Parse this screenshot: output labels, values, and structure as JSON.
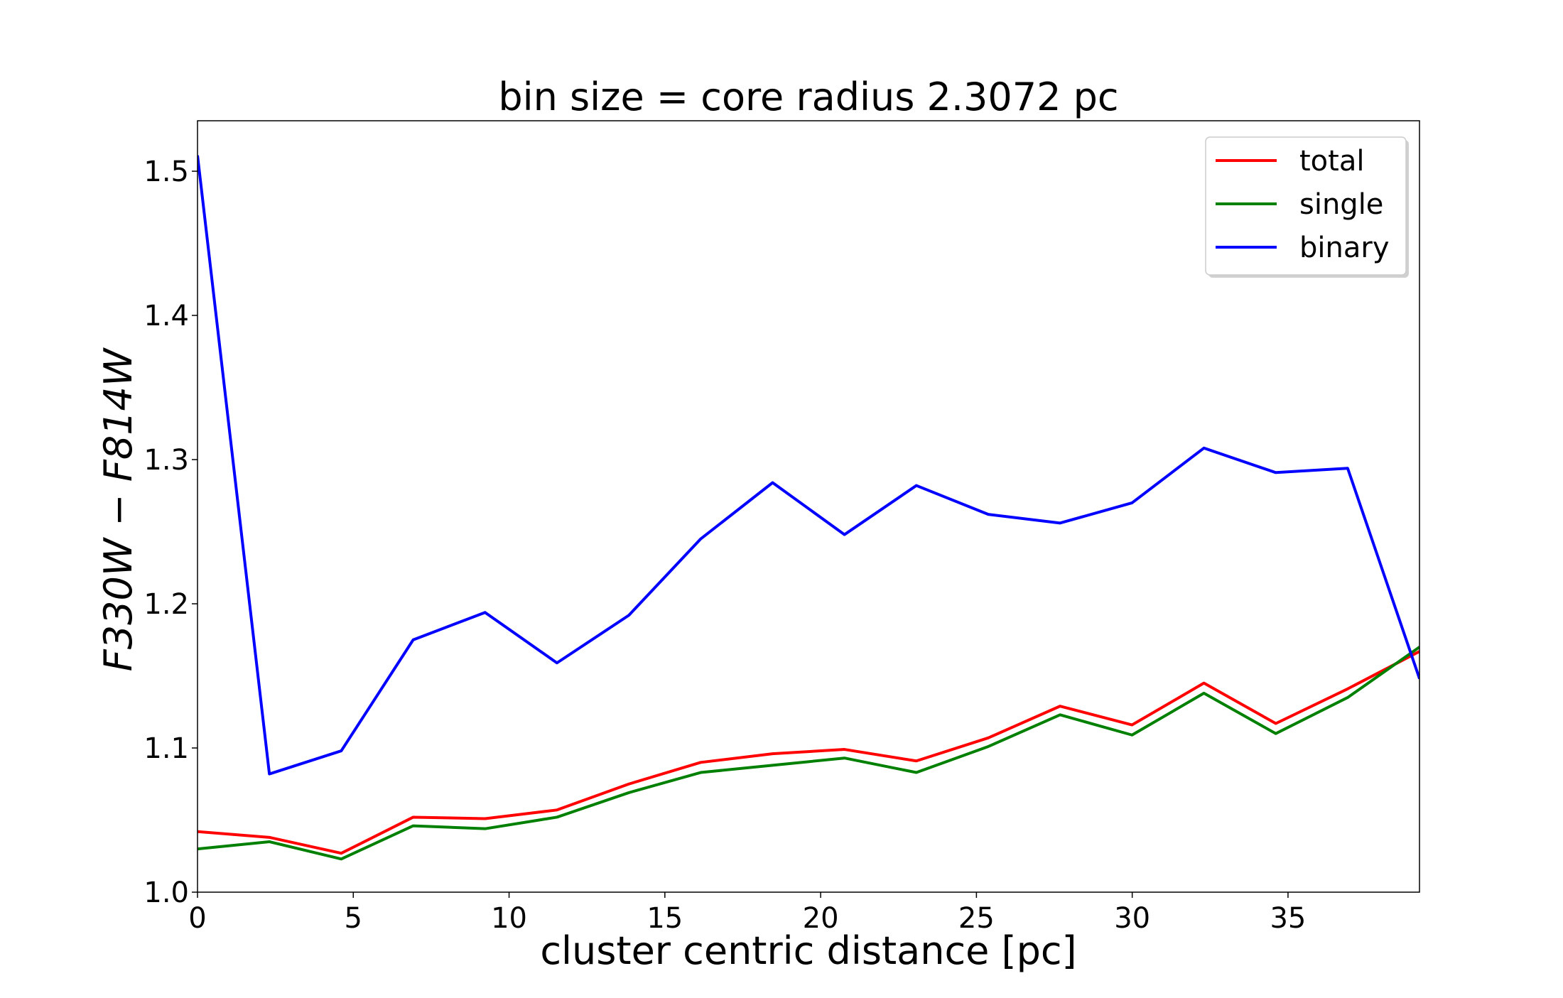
{
  "chart_data": {
    "type": "line",
    "title": "bin size = core radius 2.3072 pc",
    "xlabel": "cluster centric distance [pc]",
    "ylabel": "F330W − F814W",
    "xlim": [
      0,
      39.22
    ],
    "ylim": [
      1.0,
      1.535
    ],
    "xticks": [
      0,
      5,
      10,
      15,
      20,
      25,
      30,
      35
    ],
    "xtick_labels": [
      "0",
      "5",
      "10",
      "15",
      "20",
      "25",
      "30",
      "35"
    ],
    "yticks": [
      1.0,
      1.1,
      1.2,
      1.3,
      1.4,
      1.5
    ],
    "ytick_labels": [
      "1.0",
      "1.1",
      "1.2",
      "1.3",
      "1.4",
      "1.5"
    ],
    "grid": false,
    "legend_position": "top-right",
    "x": [
      0,
      2.307,
      4.614,
      6.922,
      9.229,
      11.536,
      13.843,
      16.15,
      18.458,
      20.765,
      23.072,
      25.379,
      27.686,
      29.994,
      32.301,
      34.608,
      36.915,
      39.222
    ],
    "series": [
      {
        "name": "total",
        "color": "#ff0000",
        "values": [
          1.042,
          1.038,
          1.027,
          1.052,
          1.051,
          1.057,
          1.075,
          1.09,
          1.096,
          1.099,
          1.091,
          1.107,
          1.129,
          1.116,
          1.145,
          1.117,
          1.141,
          1.167
        ]
      },
      {
        "name": "single",
        "color": "#008000",
        "values": [
          1.03,
          1.035,
          1.023,
          1.046,
          1.044,
          1.052,
          1.069,
          1.083,
          1.088,
          1.093,
          1.083,
          1.101,
          1.123,
          1.109,
          1.138,
          1.11,
          1.135,
          1.17
        ]
      },
      {
        "name": "binary",
        "color": "#0000ff",
        "values": [
          1.511,
          1.082,
          1.098,
          1.175,
          1.194,
          1.159,
          1.192,
          1.245,
          1.284,
          1.248,
          1.282,
          1.262,
          1.256,
          1.27,
          1.308,
          1.291,
          1.294,
          1.148
        ]
      }
    ]
  }
}
